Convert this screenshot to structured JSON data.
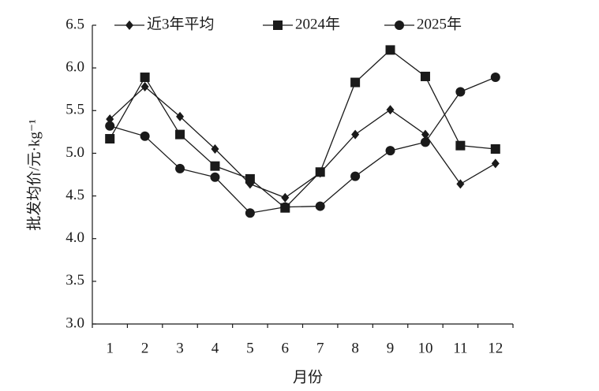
{
  "chart_data": {
    "type": "line",
    "x_label": "月份",
    "y_label": "批发均价/元·kg⁻¹",
    "categories": [
      "1",
      "2",
      "3",
      "4",
      "5",
      "6",
      "7",
      "8",
      "9",
      "10",
      "11",
      "12"
    ],
    "series": [
      {
        "name": "近3年平均",
        "color": "#1a1a1a",
        "marker": "diamond",
        "values": [
          5.4,
          5.78,
          5.43,
          5.05,
          4.64,
          4.48,
          4.77,
          5.22,
          5.51,
          5.22,
          4.64,
          4.88
        ]
      },
      {
        "name": "2024年",
        "color": "#1a1a1a",
        "marker": "square",
        "values": [
          5.17,
          5.89,
          5.22,
          4.85,
          4.7,
          4.36,
          4.78,
          5.83,
          6.21,
          5.9,
          5.09,
          5.05
        ]
      },
      {
        "name": "2025年",
        "color": "#1a1a1a",
        "marker": "circle",
        "values": [
          5.32,
          5.2,
          4.82,
          4.72,
          4.3,
          4.37,
          4.38,
          4.73,
          5.03,
          5.13,
          5.72,
          5.89
        ]
      }
    ],
    "ylim": [
      3,
      6.5
    ],
    "yticks": [
      {
        "value": 3,
        "label": "3.0"
      },
      3.5,
      {
        "value": 4,
        "label": "4.0"
      },
      4.5,
      {
        "value": 5,
        "label": "5.0"
      },
      5.5,
      {
        "value": 6,
        "label": "6.0"
      },
      6.5
    ],
    "grid": false,
    "legend": "top"
  }
}
